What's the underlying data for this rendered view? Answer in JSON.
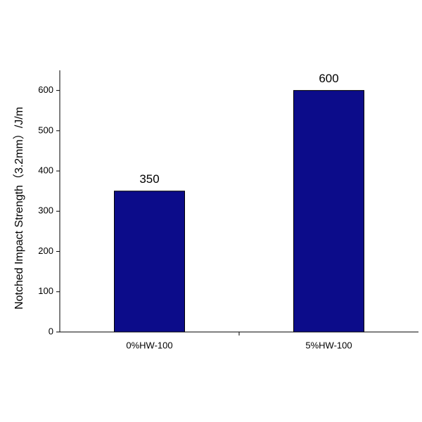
{
  "chart_data": {
    "type": "bar",
    "y_label": "Notched Impact Strength（3.2mm）/J/m",
    "categories": [
      "0%HW-100",
      "5%HW-100"
    ],
    "values": [
      350,
      600
    ],
    "color": "#0c0c8a",
    "ylim": [
      0,
      650
    ],
    "yticks": [
      0,
      100,
      200,
      300,
      400,
      500,
      600
    ],
    "grid": false
  }
}
